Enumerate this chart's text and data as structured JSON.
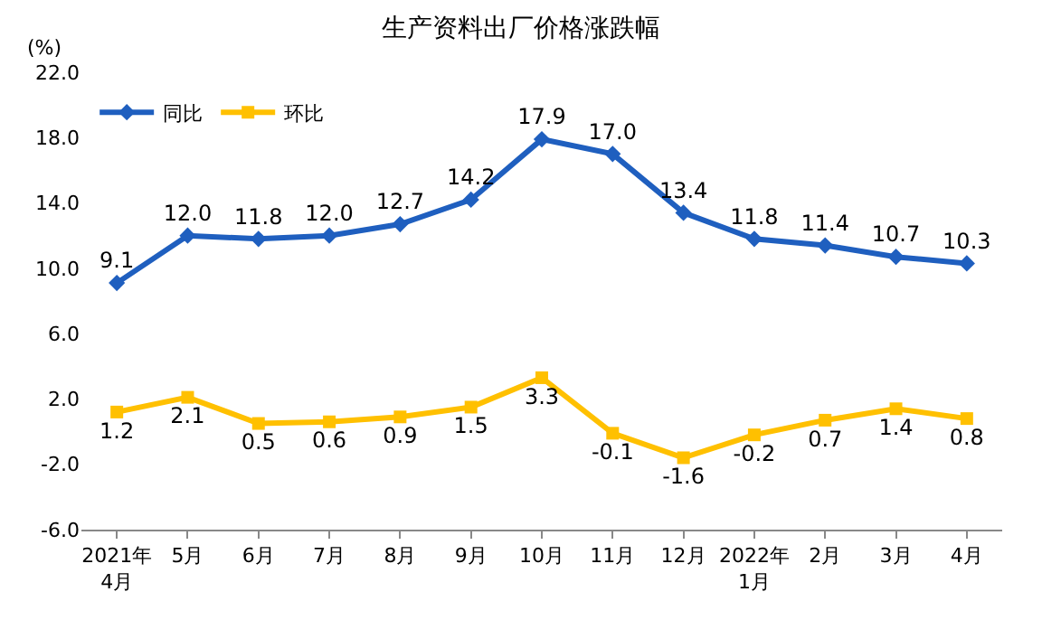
{
  "chart_data": {
    "type": "line",
    "title": "生产资料出厂价格涨跌幅",
    "ylabel": "(%)",
    "categories": [
      "2021年\n4月",
      "5月",
      "6月",
      "7月",
      "8月",
      "9月",
      "10月",
      "11月",
      "12月",
      "2022年\n1月",
      "2月",
      "3月",
      "4月"
    ],
    "series": [
      {
        "name": "同比",
        "color": "#1f5fbf",
        "marker": "diamond",
        "values": [
          9.1,
          12.0,
          11.8,
          12.0,
          12.7,
          14.2,
          17.9,
          17.0,
          13.4,
          11.8,
          11.4,
          10.7,
          10.3
        ],
        "value_labels": [
          "9.1",
          "12.0",
          "11.8",
          "12.0",
          "12.7",
          "14.2",
          "17.9",
          "17.0",
          "13.4",
          "11.8",
          "11.4",
          "10.7",
          "10.3"
        ]
      },
      {
        "name": "环比",
        "color": "#ffc000",
        "marker": "square",
        "values": [
          1.2,
          2.1,
          0.5,
          0.6,
          0.9,
          1.5,
          3.3,
          -0.1,
          -1.6,
          -0.2,
          0.7,
          1.4,
          0.8
        ],
        "value_labels": [
          "1.2",
          "2.1",
          "0.5",
          "0.6",
          "0.9",
          "1.5",
          "3.3",
          "-0.1",
          "-1.6",
          "-0.2",
          "0.7",
          "1.4",
          "0.8"
        ]
      }
    ],
    "ylim": [
      -6,
      22
    ],
    "yticks": [
      {
        "value": -6,
        "label": "-6.0"
      },
      {
        "value": -2,
        "label": "-2.0"
      },
      {
        "value": 2,
        "label": "2.0"
      },
      {
        "value": 6,
        "label": "6.0"
      },
      {
        "value": 10,
        "label": "10.0"
      },
      {
        "value": 14,
        "label": "14.0"
      },
      {
        "value": 18,
        "label": "18.0"
      },
      {
        "value": 22,
        "label": "22.0"
      }
    ],
    "legend": "top left",
    "line_style": "solid"
  }
}
